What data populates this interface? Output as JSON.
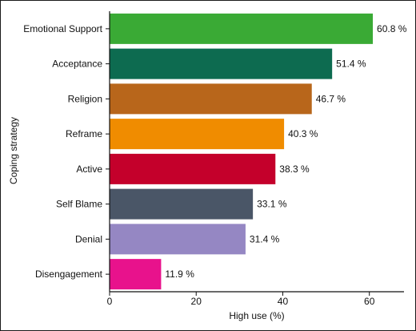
{
  "chart_data": {
    "type": "bar",
    "orientation": "horizontal",
    "title": "",
    "xlabel": "High use (%)",
    "ylabel": "Coping strategy",
    "xlim": [
      0,
      68
    ],
    "xticks": [
      0,
      20,
      40,
      60
    ],
    "grid": false,
    "value_suffix": " %",
    "categories": [
      "Emotional Support",
      "Acceptance",
      "Religion",
      "Reframe",
      "Active",
      "Self Blame",
      "Denial",
      "Disengagement"
    ],
    "values": [
      60.8,
      51.4,
      46.7,
      40.3,
      38.3,
      33.1,
      31.4,
      11.9
    ],
    "value_labels": [
      "60.8 %",
      "51.4 %",
      "46.7 %",
      "40.3 %",
      "38.3 %",
      "33.1 %",
      "31.4 %",
      "11.9 %"
    ],
    "colors": [
      "#3aaa35",
      "#0d6b50",
      "#b8661b",
      "#f08c00",
      "#c4002b",
      "#4a5667",
      "#9587c3",
      "#e8128c"
    ]
  }
}
